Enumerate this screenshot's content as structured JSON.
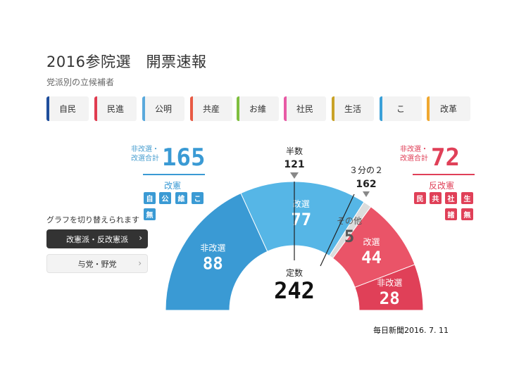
{
  "header": {
    "title": "2016参院選　開票速報",
    "subtitle": "党派別の立候補者"
  },
  "party_tabs": [
    {
      "label": "自民",
      "color": "#1f4e9c"
    },
    {
      "label": "民進",
      "color": "#e03c50"
    },
    {
      "label": "公明",
      "color": "#5aa9dc"
    },
    {
      "label": "共産",
      "color": "#e85a44"
    },
    {
      "label": "お維",
      "color": "#7fbf3f"
    },
    {
      "label": "社民",
      "color": "#e85aa5"
    },
    {
      "label": "生活",
      "color": "#c9a227"
    },
    {
      "label": "こ",
      "color": "#3aa0d8"
    },
    {
      "label": "改革",
      "color": "#f0a830"
    }
  ],
  "left_summary": {
    "label_line1": "非改選・",
    "label_line2": "改選合計",
    "total": "165",
    "group_title": "改憲",
    "badges": [
      "自",
      "公",
      "維",
      "こ",
      "無"
    ],
    "color": "#3a9ad4"
  },
  "right_summary": {
    "label_line1": "非改選・",
    "label_line2": "改選合計",
    "total": "72",
    "group_title": "反改憲",
    "badges": [
      "民",
      "共",
      "社",
      "生",
      "諸",
      "無"
    ],
    "color": "#e04058"
  },
  "switcher": {
    "label": "グラフを切り替えられます",
    "buttons": [
      "改憲派・反改憲派",
      "与党・野党"
    ],
    "chevron": "›"
  },
  "markers": {
    "half_label": "半数",
    "half_value": "121",
    "two_thirds_label": "３分の２",
    "two_thirds_value": "162"
  },
  "center": {
    "label": "定数",
    "value": "242"
  },
  "source": "毎日新聞2016. 7. 11",
  "chart_data": {
    "type": "pie",
    "total": 242,
    "segments": [
      {
        "name": "非改選",
        "value": 88,
        "color": "#3a9ad4"
      },
      {
        "name": "改選",
        "value": 77,
        "color": "#56b6e6"
      },
      {
        "name": "その他",
        "value": 5,
        "color": "#dcdcdc"
      },
      {
        "name": "改選",
        "value": 44,
        "color": "#ea5468"
      },
      {
        "name": "非改選",
        "value": 28,
        "color": "#e04058"
      }
    ],
    "thresholds": [
      121,
      162
    ]
  }
}
